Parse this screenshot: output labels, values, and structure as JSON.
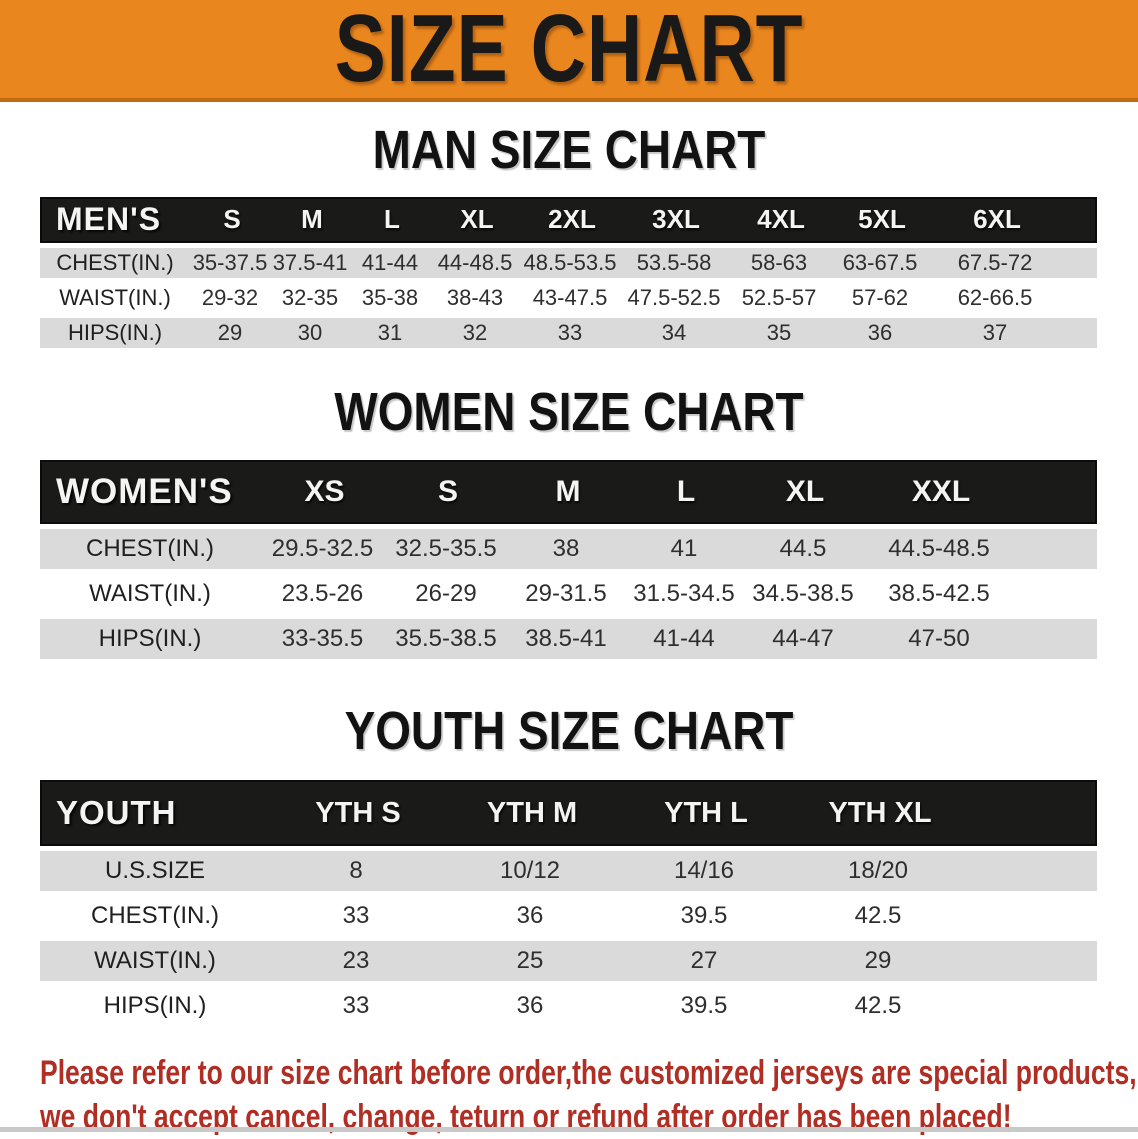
{
  "colors": {
    "banner_bg": "#EA861E",
    "banner_border": "#C26A10",
    "table_header_bg": "#1A1A18",
    "row_stripe": "#DADADA",
    "disclaimer_red": "#B02E24"
  },
  "banner": {
    "title": "SIZE CHART"
  },
  "man_chart": {
    "heading": "MAN SIZE CHART",
    "header": {
      "label": "MEN'S",
      "sizes": [
        "S",
        "M",
        "L",
        "XL",
        "2XL",
        "3XL",
        "4XL",
        "5XL",
        "6XL"
      ]
    },
    "rows": [
      {
        "label": "CHEST(IN.)",
        "values": [
          "35-37.5",
          "37.5-41",
          "41-44",
          "44-48.5",
          "48.5-53.5",
          "53.5-58",
          "58-63",
          "63-67.5",
          "67.5-72"
        ]
      },
      {
        "label": "WAIST(IN.)",
        "values": [
          "29-32",
          "32-35",
          "35-38",
          "38-43",
          "43-47.5",
          "47.5-52.5",
          "52.5-57",
          "57-62",
          "62-66.5"
        ]
      },
      {
        "label": "HIPS(IN.)",
        "values": [
          "29",
          "30",
          "31",
          "32",
          "33",
          "34",
          "35",
          "36",
          "37"
        ]
      }
    ]
  },
  "women_chart": {
    "heading": "WOMEN SIZE CHART",
    "header": {
      "label": "WOMEN'S",
      "sizes": [
        "XS",
        "S",
        "M",
        "L",
        "XL",
        "XXL"
      ]
    },
    "rows": [
      {
        "label": "CHEST(IN.)",
        "values": [
          "29.5-32.5",
          "32.5-35.5",
          "38",
          "41",
          "44.5",
          "44.5-48.5"
        ]
      },
      {
        "label": "WAIST(IN.)",
        "values": [
          "23.5-26",
          "26-29",
          "29-31.5",
          "31.5-34.5",
          "34.5-38.5",
          "38.5-42.5"
        ]
      },
      {
        "label": "HIPS(IN.)",
        "values": [
          "33-35.5",
          "35.5-38.5",
          "38.5-41",
          "41-44",
          "44-47",
          "47-50"
        ]
      }
    ]
  },
  "youth_chart": {
    "heading": "YOUTH SIZE CHART",
    "header": {
      "label": "YOUTH",
      "sizes": [
        "YTH S",
        "YTH M",
        "YTH L",
        "YTH XL"
      ]
    },
    "rows": [
      {
        "label": "U.S.SIZE",
        "values": [
          "8",
          "10/12",
          "14/16",
          "18/20"
        ]
      },
      {
        "label": "CHEST(IN.)",
        "values": [
          "33",
          "36",
          "39.5",
          "42.5"
        ]
      },
      {
        "label": "WAIST(IN.)",
        "values": [
          "23",
          "25",
          "27",
          "29"
        ]
      },
      {
        "label": "HIPS(IN.)",
        "values": [
          "33",
          "36",
          "39.5",
          "42.5"
        ]
      }
    ]
  },
  "disclaimer": {
    "line1": "Please refer to our size chart before order,the customized jerseys are special products,",
    "line2": "we don't accept cancel, change, teturn or refund after order has been placed!"
  }
}
